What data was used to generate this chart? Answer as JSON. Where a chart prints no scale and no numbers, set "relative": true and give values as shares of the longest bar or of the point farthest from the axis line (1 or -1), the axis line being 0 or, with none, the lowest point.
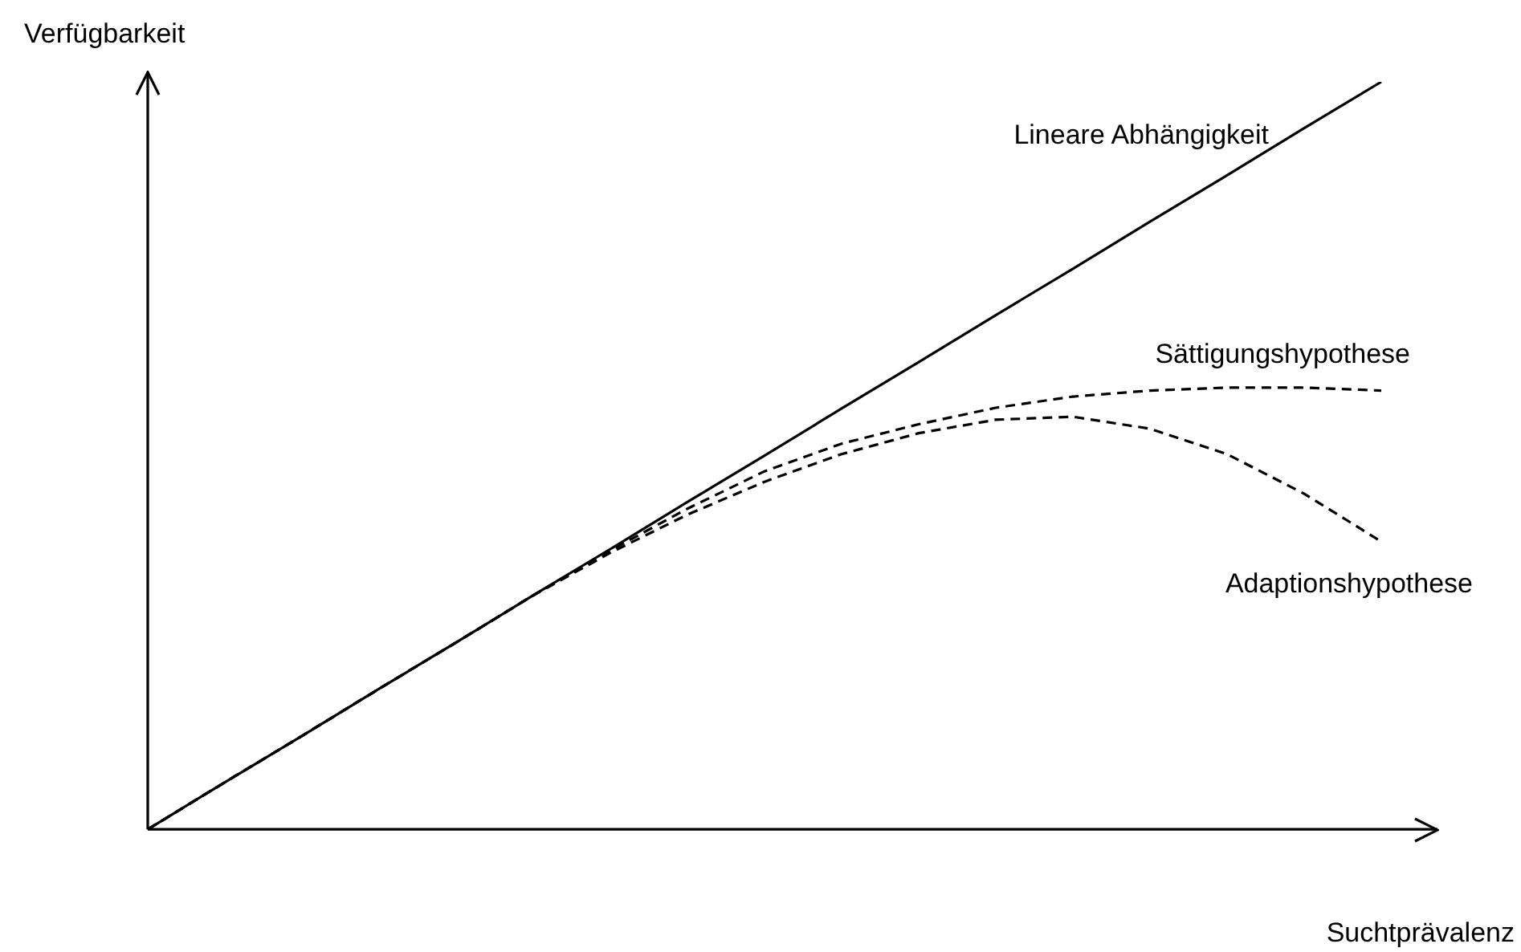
{
  "chart_data": {
    "type": "line",
    "relative": true,
    "xlabel": "Suchtprävalenz",
    "ylabel": "Verfügbarkeit",
    "categories": [
      null,
      null,
      null,
      null,
      null,
      null,
      null,
      null,
      null,
      null,
      null,
      null,
      null,
      null,
      null,
      null,
      null
    ],
    "legend": false,
    "marker": "none",
    "series": [
      {
        "name": "Lineare Abhängigkeit",
        "color": "#000000",
        "line_style": "solid",
        "values": [
          0,
          0.063,
          0.125,
          0.188,
          0.25,
          0.313,
          0.375,
          0.438,
          0.5,
          0.563,
          0.625,
          0.688,
          0.75,
          0.813,
          0.875,
          0.938,
          1
        ]
      },
      {
        "name": "Sättigungshypothese",
        "color": "#000000",
        "line_style": "dashed",
        "values": [
          0,
          0.063,
          0.125,
          0.188,
          0.25,
          0.313,
          0.373,
          0.429,
          0.479,
          0.516,
          0.542,
          0.564,
          0.579,
          0.587,
          0.591,
          0.591,
          0.587
        ]
      },
      {
        "name": "Adaptionshypothese",
        "color": "#000000",
        "line_style": "dashed",
        "values": [
          0,
          0.063,
          0.125,
          0.188,
          0.25,
          0.313,
          0.37,
          0.421,
          0.465,
          0.502,
          0.53,
          0.548,
          0.552,
          0.536,
          0.502,
          0.449,
          0.385
        ]
      }
    ]
  }
}
